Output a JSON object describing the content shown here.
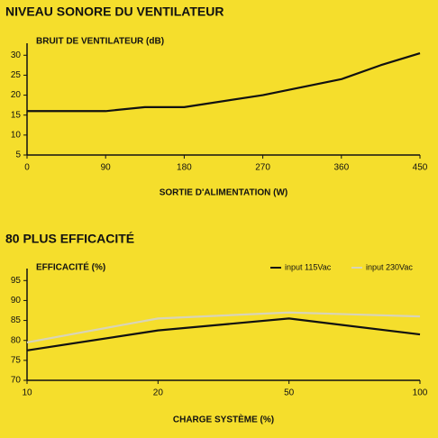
{
  "chart_data": [
    {
      "type": "line",
      "title": "NIVEAU SONORE DU VENTILATEUR",
      "y_label": "BRUIT DE VENTILATEUR (dB)",
      "x_label": "SORTIE D'ALIMENTATION (W)",
      "x": [
        0,
        90,
        135,
        180,
        270,
        315,
        360,
        405,
        450
      ],
      "series": [
        {
          "name": null,
          "color": "#111111",
          "values": [
            16,
            16,
            17,
            17,
            20,
            22,
            24,
            27.5,
            30.5
          ]
        }
      ],
      "xlim": [
        0,
        450
      ],
      "xticks": [
        0,
        90,
        180,
        270,
        360,
        450
      ],
      "ylim": [
        5,
        33
      ],
      "yticks": [
        5,
        10,
        15,
        20,
        25,
        30
      ],
      "grid": false
    },
    {
      "type": "line",
      "title": "80 PLUS EFFICACITÉ",
      "y_label": "EFFICACITÉ (%)",
      "x_label": "CHARGE SYSTÈME (%)",
      "categories": [
        "10",
        "20",
        "50",
        "100"
      ],
      "series": [
        {
          "name": "input 115Vac",
          "color": "#111111",
          "values": [
            77.5,
            82.5,
            85.5,
            81.5
          ]
        },
        {
          "name": "input 230Vac",
          "color": "#d8d4b8",
          "values": [
            79.5,
            85.5,
            87,
            86
          ]
        }
      ],
      "ylim": [
        70,
        98
      ],
      "yticks": [
        70,
        75,
        80,
        85,
        90,
        95
      ],
      "grid": false,
      "legend": "top-right"
    }
  ]
}
